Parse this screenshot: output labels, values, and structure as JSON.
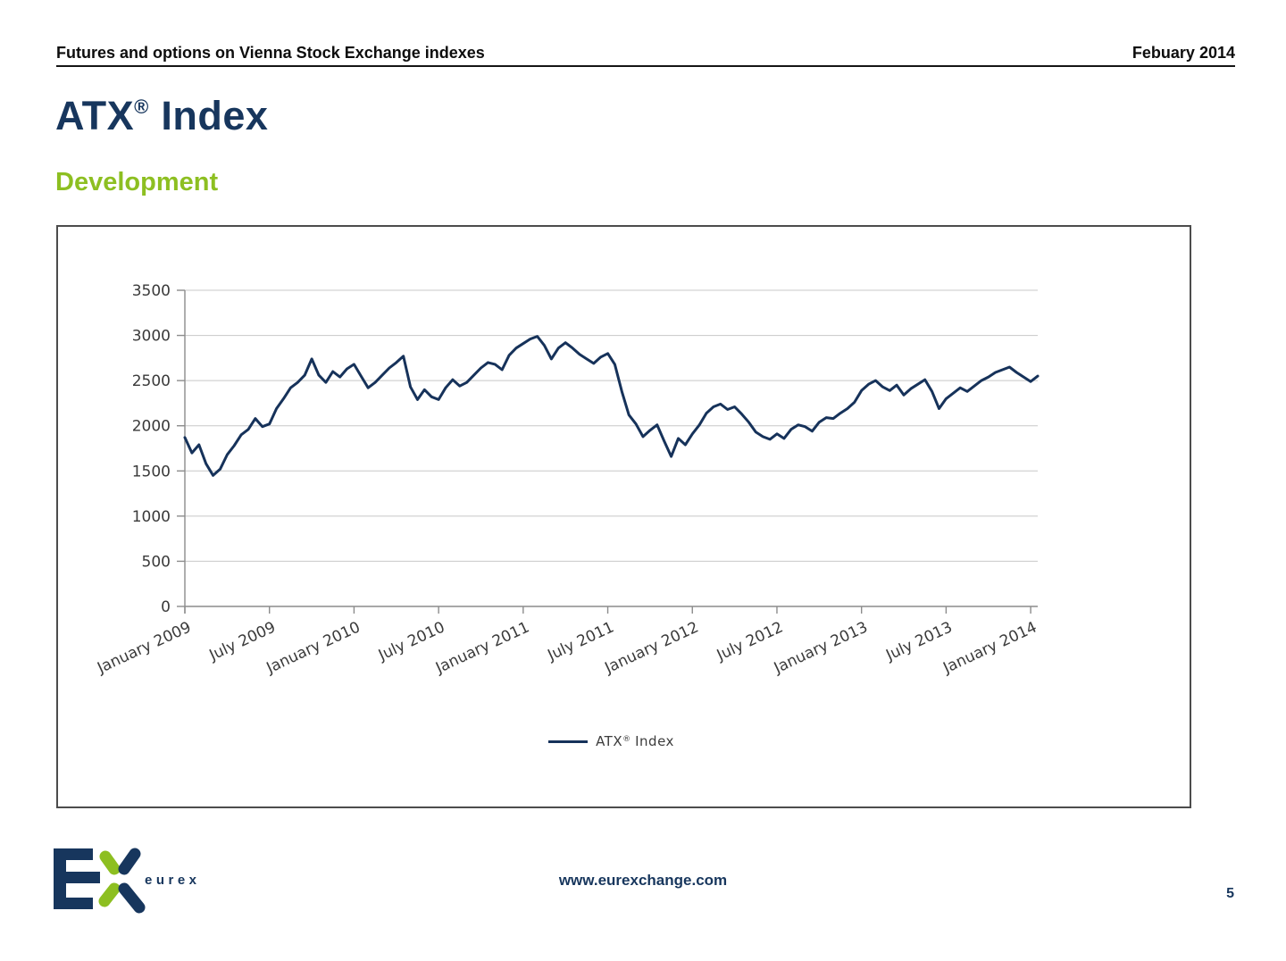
{
  "header": {
    "left": "Futures and options on Vienna Stock Exchange indexes",
    "right": "Febuary 2014"
  },
  "title": {
    "main": "ATX",
    "registered_mark": "®",
    "rest": "Index"
  },
  "section_title": "Development",
  "chart_data": {
    "type": "line",
    "title": "",
    "xlabel": "",
    "ylabel": "",
    "ylim": [
      0,
      3500
    ],
    "y_ticks": [
      0,
      500,
      1000,
      1500,
      2000,
      2500,
      3000,
      3500
    ],
    "grid": true,
    "legend_position": "bottom-center",
    "x_tick_labels": [
      "January 2009",
      "July 2009",
      "January 2010",
      "July 2010",
      "January 2011",
      "July 2011",
      "January 2012",
      "July 2012",
      "January 2013",
      "July 2013",
      "January 2014"
    ],
    "x_tick_indices": [
      0,
      12,
      24,
      36,
      48,
      60,
      72,
      84,
      96,
      108,
      120
    ],
    "legend": {
      "main": "ATX",
      "reg": "®",
      "rest": "Index"
    },
    "series": [
      {
        "name": "ATX® Index",
        "color": "#16325a",
        "values": [
          1870,
          1700,
          1790,
          1580,
          1450,
          1520,
          1680,
          1780,
          1900,
          1960,
          2080,
          1990,
          2020,
          2190,
          2300,
          2420,
          2480,
          2560,
          2740,
          2560,
          2480,
          2600,
          2540,
          2630,
          2680,
          2550,
          2420,
          2480,
          2560,
          2640,
          2700,
          2770,
          2430,
          2290,
          2400,
          2320,
          2290,
          2420,
          2510,
          2440,
          2480,
          2560,
          2640,
          2700,
          2680,
          2620,
          2780,
          2860,
          2910,
          2960,
          2990,
          2890,
          2740,
          2860,
          2920,
          2860,
          2790,
          2740,
          2690,
          2760,
          2800,
          2680,
          2380,
          2120,
          2020,
          1880,
          1950,
          2010,
          1830,
          1660,
          1860,
          1790,
          1910,
          2010,
          2140,
          2210,
          2240,
          2180,
          2210,
          2130,
          2040,
          1930,
          1880,
          1850,
          1910,
          1860,
          1960,
          2010,
          1990,
          1940,
          2040,
          2090,
          2080,
          2140,
          2190,
          2260,
          2390,
          2460,
          2500,
          2430,
          2390,
          2450,
          2340,
          2410,
          2460,
          2510,
          2380,
          2190,
          2300,
          2360,
          2420,
          2380,
          2440,
          2500,
          2540,
          2590,
          2620,
          2650,
          2590,
          2540,
          2490,
          2550
        ]
      }
    ]
  },
  "footer": {
    "logo_text": "eurex",
    "url": "www.eurexchange.com",
    "page_number": "5"
  },
  "colors": {
    "navy": "#17365d",
    "green": "#8dbf21",
    "line": "#16325a",
    "grid": "#c8c8c8",
    "axis": "#8c8c8c",
    "tick_text": "#3a3a3a"
  }
}
